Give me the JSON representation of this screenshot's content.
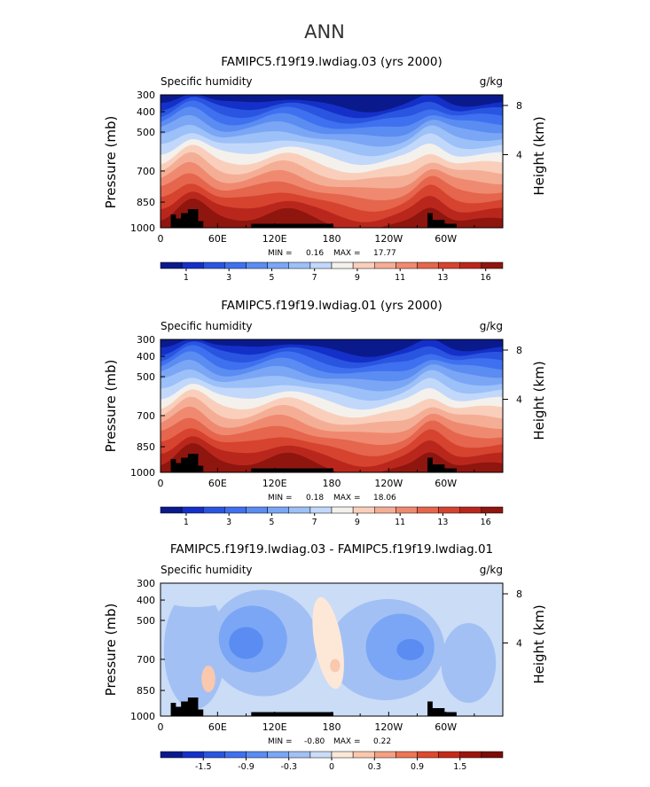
{
  "page": {
    "title": "ANN"
  },
  "colors": {
    "absolute": [
      "#0a1a8c",
      "#1430c8",
      "#2a55e0",
      "#3f70f0",
      "#5a8cf2",
      "#7aa6f5",
      "#9cc0f8",
      "#c2d8fb",
      "#f4f1ec",
      "#f9cfbc",
      "#f5ae96",
      "#ef8a70",
      "#e6654d",
      "#d6432f",
      "#b9271c",
      "#8f150f"
    ],
    "difference": [
      "#0a1a8c",
      "#1430c8",
      "#2a55e0",
      "#3f70f0",
      "#5a8cf2",
      "#7aa6f5",
      "#a3c0f4",
      "#cadcf6",
      "#fde8d8",
      "#fac8ad",
      "#f4a083",
      "#ec7656",
      "#dd4b2f",
      "#c52a1a",
      "#9c160e",
      "#7a0d08"
    ],
    "terrain": "#000000"
  },
  "chart_data": [
    {
      "type": "contour",
      "title": "FAMIPC5.f19f19.lwdiag.03 (yrs 2000)",
      "subtitle_left": "Specific humidity",
      "subtitle_right": "g/kg",
      "ylabel": "Pressure (mb)",
      "ylabel_right": "Height (km)",
      "x_ticks": [
        "0",
        "60E",
        "120E",
        "180",
        "120W",
        "60W"
      ],
      "y_ticks": [
        "300",
        "400",
        "500",
        "700",
        "850",
        "1000"
      ],
      "y_ticks_right": [
        "8",
        "4"
      ],
      "stats": {
        "min_label": "MIN =",
        "min": "0.16",
        "max_label": "MAX =",
        "max": "17.77"
      },
      "colorbar_labels": [
        "1",
        "3",
        "5",
        "7",
        "9",
        "11",
        "13",
        "16"
      ],
      "field": "absolute"
    },
    {
      "type": "contour",
      "title": "FAMIPC5.f19f19.lwdiag.01 (yrs 2000)",
      "subtitle_left": "Specific humidity",
      "subtitle_right": "g/kg",
      "ylabel": "Pressure (mb)",
      "ylabel_right": "Height (km)",
      "x_ticks": [
        "0",
        "60E",
        "120E",
        "180",
        "120W",
        "60W"
      ],
      "y_ticks": [
        "300",
        "400",
        "500",
        "700",
        "850",
        "1000"
      ],
      "y_ticks_right": [
        "8",
        "4"
      ],
      "stats": {
        "min_label": "MIN =",
        "min": "0.18",
        "max_label": "MAX =",
        "max": "18.06"
      },
      "colorbar_labels": [
        "1",
        "3",
        "5",
        "7",
        "9",
        "11",
        "13",
        "16"
      ],
      "field": "absolute"
    },
    {
      "type": "contour",
      "title": "FAMIPC5.f19f19.lwdiag.03 - FAMIPC5.f19f19.lwdiag.01",
      "subtitle_left": "Specific humidity",
      "subtitle_right": "g/kg",
      "ylabel": "Pressure (mb)",
      "ylabel_right": "Height (km)",
      "x_ticks": [
        "0",
        "60E",
        "120E",
        "180",
        "120W",
        "60W"
      ],
      "y_ticks": [
        "300",
        "400",
        "500",
        "700",
        "850",
        "1000"
      ],
      "y_ticks_right": [
        "8",
        "4"
      ],
      "stats": {
        "min_label": "MIN =",
        "min": "-0.80",
        "max_label": "MAX =",
        "max": "0.22"
      },
      "colorbar_labels": [
        "-1.5",
        "-0.9",
        "-0.3",
        "0",
        "0.3",
        "0.9",
        "1.5"
      ],
      "field": "difference"
    }
  ]
}
